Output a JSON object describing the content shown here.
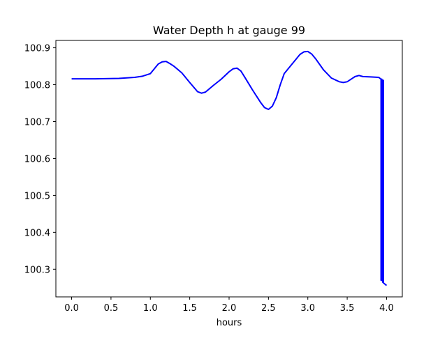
{
  "chart_data": {
    "type": "line",
    "title": "Water Depth h at gauge 99",
    "xlabel": "hours",
    "ylabel": "",
    "xlim": [
      -0.2,
      4.2
    ],
    "ylim": [
      100.225,
      100.92
    ],
    "x_ticks": [
      0.0,
      0.5,
      1.0,
      1.5,
      2.0,
      2.5,
      3.0,
      3.5,
      4.0
    ],
    "x_tick_labels": [
      "0.0",
      "0.5",
      "1.0",
      "1.5",
      "2.0",
      "2.5",
      "3.0",
      "3.5",
      "4.0"
    ],
    "y_ticks": [
      100.3,
      100.4,
      100.5,
      100.6,
      100.7,
      100.8,
      100.9
    ],
    "y_tick_labels": [
      "100.3",
      "100.4",
      "100.5",
      "100.6",
      "100.7",
      "100.8",
      "100.9"
    ],
    "grid": false,
    "legend": "none",
    "series": [
      {
        "color": "#0000ff",
        "x": [
          0.0,
          0.3,
          0.6,
          0.8,
          0.9,
          1.0,
          1.05,
          1.1,
          1.15,
          1.2,
          1.25,
          1.3,
          1.4,
          1.5,
          1.6,
          1.65,
          1.7,
          1.8,
          1.9,
          2.0,
          2.05,
          2.1,
          2.15,
          2.2,
          2.3,
          2.4,
          2.45,
          2.5,
          2.55,
          2.6,
          2.65,
          2.7,
          2.8,
          2.9,
          2.95,
          3.0,
          3.05,
          3.1,
          3.2,
          3.3,
          3.4,
          3.45,
          3.5,
          3.55,
          3.6,
          3.65,
          3.7,
          3.8,
          3.9,
          3.93,
          3.93,
          3.935,
          3.935,
          3.94,
          3.94,
          3.945,
          3.945,
          3.95,
          3.95,
          3.955,
          3.955,
          3.96,
          3.96,
          4.0
        ],
        "y": [
          100.816,
          100.816,
          100.817,
          100.82,
          100.823,
          100.83,
          100.843,
          100.856,
          100.862,
          100.863,
          100.857,
          100.85,
          100.832,
          100.806,
          100.781,
          100.777,
          100.78,
          100.798,
          100.815,
          100.835,
          100.843,
          100.845,
          100.837,
          100.82,
          100.785,
          100.752,
          100.738,
          100.733,
          100.742,
          100.765,
          100.8,
          100.83,
          100.856,
          100.882,
          100.889,
          100.89,
          100.883,
          100.87,
          100.84,
          100.818,
          100.808,
          100.806,
          100.808,
          100.815,
          100.822,
          100.825,
          100.822,
          100.821,
          100.82,
          100.815,
          100.27,
          100.27,
          100.815,
          100.815,
          100.27,
          100.27,
          100.812,
          100.812,
          100.265,
          100.265,
          100.812,
          100.812,
          100.263,
          100.256
        ]
      }
    ]
  }
}
